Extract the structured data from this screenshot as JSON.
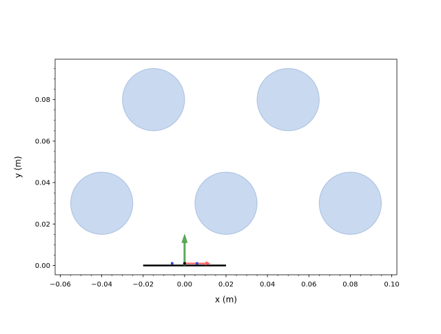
{
  "chart_data": {
    "type": "scatter",
    "title": "",
    "xlabel": "x (m)",
    "ylabel": "y (m)",
    "xlim": [
      -0.0625,
      0.1025
    ],
    "ylim": [
      -0.0045,
      0.0995
    ],
    "x_ticks": [
      -0.06,
      -0.04,
      -0.02,
      0.0,
      0.02,
      0.04,
      0.06,
      0.08,
      0.1
    ],
    "x_tick_labels": [
      "−0.06",
      "−0.04",
      "−0.02",
      "0.00",
      "0.02",
      "0.04",
      "0.06",
      "0.08",
      "0.10"
    ],
    "x_minor_step": 0.005,
    "y_ticks": [
      0.0,
      0.02,
      0.04,
      0.06,
      0.08
    ],
    "y_tick_labels": [
      "0.00",
      "0.02",
      "0.04",
      "0.06",
      "0.08"
    ],
    "y_minor_step": 0.005,
    "grid": false,
    "series": [
      {
        "kind": "circles",
        "radius": 0.015,
        "fill": "#c9d9ef",
        "stroke": "#a9c0e2",
        "points": [
          {
            "x": -0.015,
            "y": 0.08
          },
          {
            "x": 0.05,
            "y": 0.08
          },
          {
            "x": -0.04,
            "y": 0.03
          },
          {
            "x": 0.02,
            "y": 0.03
          },
          {
            "x": 0.08,
            "y": 0.03
          }
        ]
      },
      {
        "kind": "segment",
        "color": "#000000",
        "x": [
          -0.02,
          0.02
        ],
        "y": [
          0.0,
          0.0
        ]
      }
    ],
    "frame": {
      "origin": {
        "x": 0.0,
        "y": 0.0
      },
      "y_axis_arrow": {
        "length": 0.015,
        "color": "#5aaa5a"
      },
      "x_axis_arrow": {
        "length": 0.0125,
        "color": "#ff5a5a"
      },
      "markers": [
        {
          "x": -0.006,
          "y": 0.001,
          "color": "#3344cc"
        },
        {
          "x": 0.0,
          "y": 0.001,
          "color": "#000000"
        },
        {
          "x": 0.006,
          "y": 0.001,
          "color": "#3344cc"
        }
      ]
    }
  }
}
